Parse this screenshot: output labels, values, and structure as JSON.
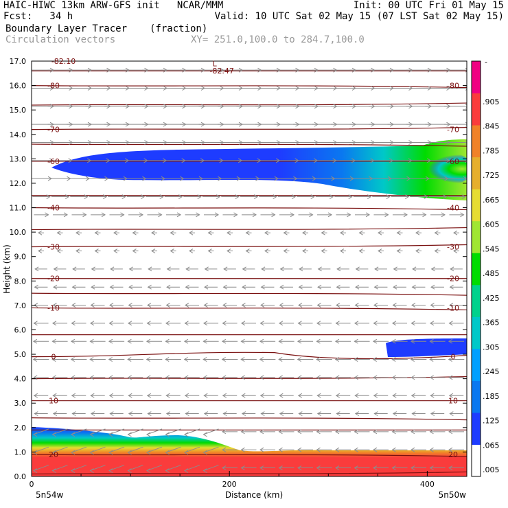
{
  "header": {
    "left_line1": "HAIC-HIWC 13km ARW-GFS init   NCAR/MMM",
    "left_line2": "Fcst:   34 h",
    "right_line1": "Init: 00 UTC Fri 01 May 15",
    "right_line2": "Valid: 10 UTC Sat 02 May 15 (07 LST Sat 02 May 15)",
    "field_name": "Boundary Layer Tracer",
    "field_units": "(fraction)",
    "vector_label": "Circulation vectors",
    "cross_section": "XY= 251.0,100.0 to 284.7,100.0"
  },
  "chart_data": {
    "type": "heatmap",
    "title": "",
    "xlabel": "Distance (km)",
    "ylabel": "Height (km)",
    "xlim": [
      0,
      440
    ],
    "ylim": [
      0,
      17
    ],
    "x_ticks": [
      0,
      200,
      400
    ],
    "y_ticks": [
      "0.0",
      "1.0",
      "2.0",
      "3.0",
      "4.0",
      "5.0",
      "6.0",
      "7.0",
      "8.0",
      "9.0",
      "10.0",
      "11.0",
      "12.0",
      "13.0",
      "14.0",
      "15.0",
      "16.0",
      "17.0"
    ],
    "corner_left": "5n54w",
    "corner_right": "5n50w",
    "colorbar": {
      "labels": [
        ".005",
        ".065",
        ".125",
        ".185",
        ".245",
        ".305",
        ".365",
        ".425",
        ".485",
        ".545",
        ".605",
        ".665",
        ".725",
        ".785",
        ".845",
        ".905"
      ],
      "top_label": "-",
      "colors": [
        "#ffffff",
        "#1e3cff",
        "#0a78f0",
        "#00a0ff",
        "#00c8c8",
        "#00d28c",
        "#00dc00",
        "#a0e632",
        "#e6dc32",
        "#e6af2d",
        "#f08228",
        "#fa3c3c",
        "#f00082"
      ]
    },
    "temperature_contours": [
      {
        "label": "-80",
        "y": 16.0
      },
      {
        "label": "-70",
        "y": 14.2
      },
      {
        "label": "-60",
        "y": 12.9
      },
      {
        "label": "-40",
        "y": 11.0
      },
      {
        "label": "-30",
        "y": 9.4
      },
      {
        "label": "-20",
        "y": 8.1
      },
      {
        "label": "-10",
        "y": 6.9
      },
      {
        "label": "0",
        "y": 4.9
      },
      {
        "label": "10",
        "y": 3.1
      },
      {
        "label": "20",
        "y": 0.9
      }
    ],
    "annotations": [
      {
        "text": "-82.47",
        "x": 180,
        "y": 16.6
      },
      {
        "text": "L",
        "x": 183,
        "y": 16.9
      },
      {
        "text": "-82.10",
        "x": 20,
        "y": 17.0
      }
    ]
  }
}
